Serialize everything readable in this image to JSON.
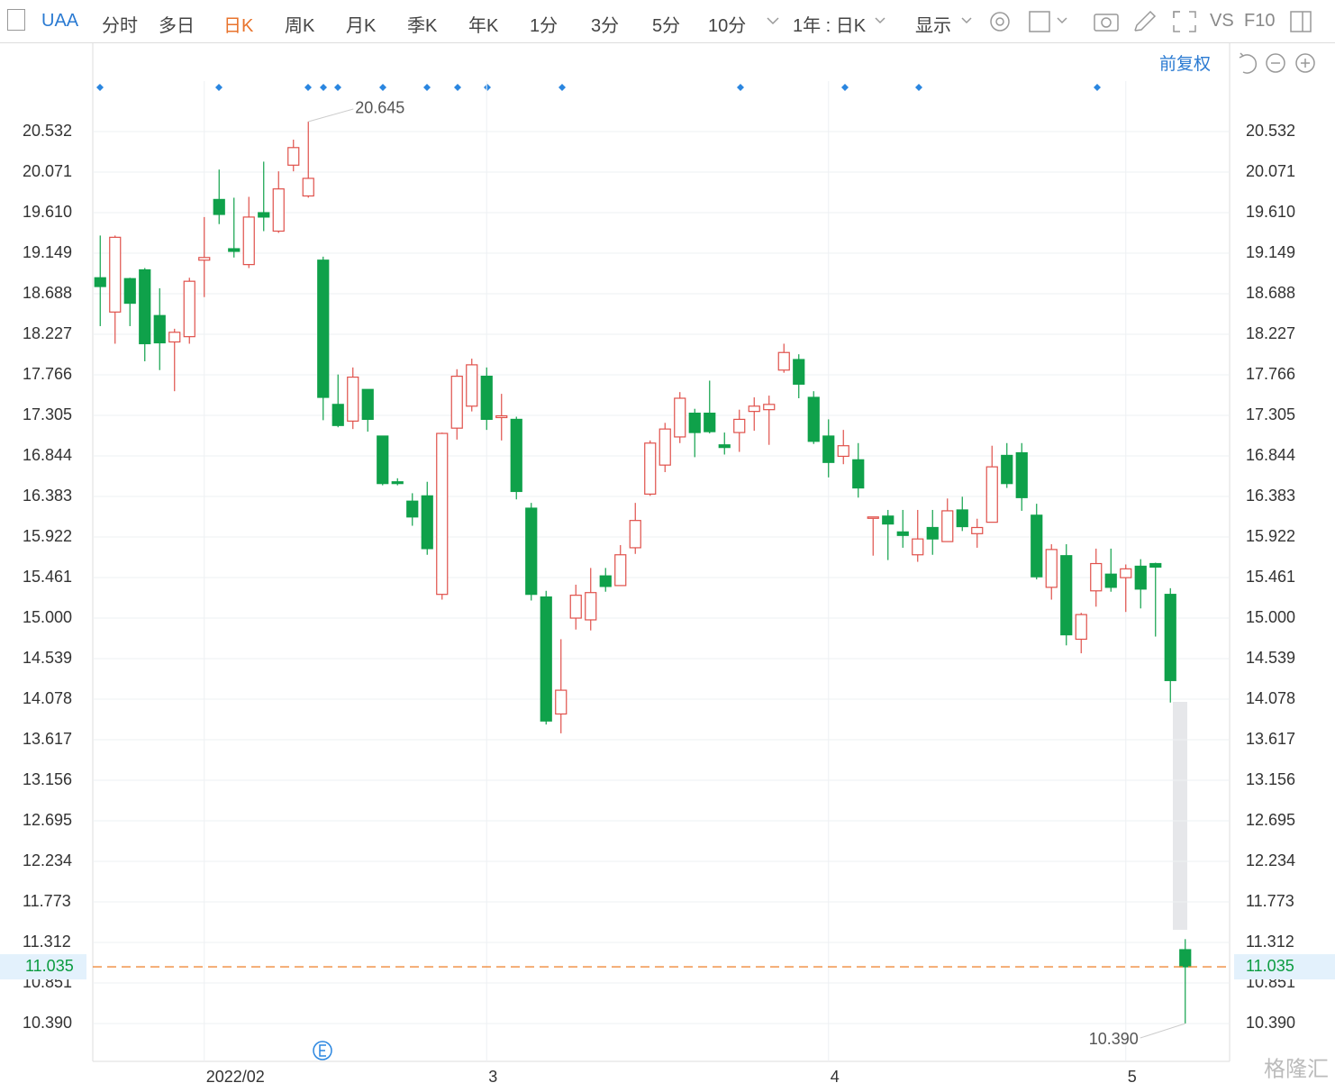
{
  "toolbar": {
    "symbol": "UAA",
    "tabs": [
      "分时",
      "多日",
      "日K",
      "周K",
      "月K",
      "季K",
      "年K",
      "1分",
      "3分",
      "5分",
      "10分"
    ],
    "period": "1年 : 日K",
    "display": "显示",
    "vs": "VS",
    "f10": "F10",
    "adjust": "前复权"
  },
  "watermark": "格隆汇",
  "chart_data": {
    "type": "candlestick",
    "categories": [
      null,
      null,
      null,
      null,
      null,
      null,
      null,
      "2022/02",
      null,
      null,
      null,
      null,
      null,
      null,
      null,
      null,
      null,
      null,
      null,
      null,
      null,
      null,
      null,
      null,
      null,
      null,
      "3",
      null,
      null,
      null,
      null,
      null,
      null,
      null,
      null,
      null,
      null,
      null,
      null,
      null,
      null,
      null,
      null,
      null,
      null,
      null,
      null,
      null,
      null,
      "4",
      null,
      null,
      null,
      null,
      null,
      null,
      null,
      null,
      null,
      null,
      null,
      null,
      null,
      null,
      null,
      null,
      null,
      null,
      null,
      "5",
      null,
      null,
      null,
      null
    ],
    "open": [
      18.87,
      18.48,
      18.86,
      18.96,
      18.44,
      18.14,
      18.2,
      19.07,
      19.76,
      19.2,
      19.02,
      19.61,
      19.4,
      20.15,
      19.8,
      19.07,
      17.43,
      17.24,
      17.6,
      17.07,
      16.55,
      16.33,
      16.39,
      15.27,
      17.16,
      17.41,
      17.75,
      17.28,
      17.26,
      16.25,
      15.24,
      13.91,
      15.0,
      14.98,
      15.48,
      15.37,
      15.8,
      16.41,
      16.74,
      17.06,
      17.33,
      17.33,
      16.97,
      17.11,
      17.35,
      17.37,
      17.82,
      17.94,
      17.51,
      17.07,
      16.84,
      16.8,
      16.14,
      16.16,
      15.98,
      15.72,
      16.03,
      15.87,
      16.23,
      15.96,
      16.09,
      16.85,
      16.88,
      16.17,
      15.35,
      15.71,
      14.76,
      15.31,
      15.5,
      15.46,
      15.59,
      15.62,
      15.27,
      11.23
    ],
    "high": [
      19.35,
      19.35,
      18.87,
      18.98,
      18.75,
      18.29,
      18.87,
      19.56,
      20.1,
      19.78,
      19.79,
      20.19,
      20.08,
      20.44,
      20.645,
      19.11,
      17.77,
      17.85,
      17.6,
      17.07,
      16.59,
      16.42,
      16.55,
      17.11,
      17.83,
      17.95,
      17.85,
      17.55,
      17.29,
      16.31,
      15.31,
      14.76,
      15.38,
      15.57,
      15.57,
      15.83,
      16.31,
      17.02,
      17.22,
      17.57,
      17.38,
      17.7,
      17.11,
      17.37,
      17.51,
      17.53,
      18.12,
      18.0,
      17.58,
      17.26,
      17.14,
      16.99,
      16.13,
      16.23,
      16.23,
      16.23,
      16.23,
      16.36,
      16.38,
      16.13,
      16.96,
      16.99,
      16.99,
      16.3,
      15.84,
      15.84,
      15.06,
      15.79,
      15.79,
      15.61,
      15.67,
      15.63,
      15.34,
      11.35
    ],
    "low": [
      18.32,
      18.12,
      18.32,
      17.92,
      17.82,
      17.58,
      18.12,
      18.65,
      19.48,
      19.1,
      18.98,
      19.4,
      19.38,
      20.08,
      19.78,
      17.25,
      17.17,
      17.15,
      17.12,
      16.51,
      16.51,
      16.05,
      15.72,
      15.21,
      17.03,
      17.35,
      17.14,
      17.02,
      16.35,
      15.2,
      13.79,
      13.69,
      14.87,
      14.86,
      15.3,
      15.37,
      15.73,
      16.39,
      16.66,
      16.99,
      16.83,
      17.1,
      16.86,
      16.89,
      17.13,
      16.97,
      17.79,
      17.5,
      16.98,
      16.6,
      16.75,
      16.37,
      15.71,
      15.66,
      15.8,
      15.64,
      15.72,
      15.87,
      15.99,
      15.8,
      16.09,
      16.48,
      16.22,
      15.44,
      15.21,
      14.69,
      14.6,
      15.13,
      15.3,
      15.07,
      15.11,
      14.79,
      14.04,
      10.39
    ],
    "close": [
      18.77,
      19.33,
      18.58,
      18.12,
      18.13,
      18.25,
      18.83,
      19.1,
      19.59,
      19.17,
      19.56,
      19.56,
      19.88,
      20.35,
      20.0,
      17.51,
      17.19,
      17.74,
      17.26,
      16.53,
      16.53,
      16.15,
      15.79,
      17.1,
      17.75,
      17.88,
      17.26,
      17.3,
      16.44,
      15.27,
      13.83,
      14.18,
      15.26,
      15.29,
      15.36,
      15.72,
      16.11,
      16.99,
      17.15,
      17.5,
      17.11,
      17.12,
      16.94,
      17.26,
      17.41,
      17.43,
      18.02,
      17.66,
      17.01,
      16.77,
      16.96,
      16.48,
      16.15,
      16.07,
      15.94,
      15.9,
      15.9,
      16.22,
      16.04,
      16.03,
      16.72,
      16.53,
      16.37,
      15.47,
      15.78,
      14.81,
      15.04,
      15.62,
      15.35,
      15.56,
      15.33,
      15.58,
      14.29,
      11.035
    ],
    "up_color": "#e0504a",
    "down_color": "#0fa14a",
    "ylim": [
      9.96,
      21.106
    ],
    "yticks": [
      20.532,
      20.071,
      {
        "value": 19.61,
        "label": "19.610"
      },
      19.149,
      18.688,
      18.227,
      17.766,
      17.305,
      16.844,
      16.383,
      15.922,
      15.461,
      {
        "value": 15,
        "label": "15.000"
      },
      14.539,
      14.078,
      13.617,
      13.156,
      12.695,
      12.234,
      11.773,
      11.312,
      10.851,
      {
        "value": 10.39,
        "label": "10.390"
      }
    ],
    "grid": true,
    "last_price": 11.035,
    "high_annotation": 20.645,
    "low_annotation": {
      "value": 10.39,
      "label": "10.390"
    }
  }
}
